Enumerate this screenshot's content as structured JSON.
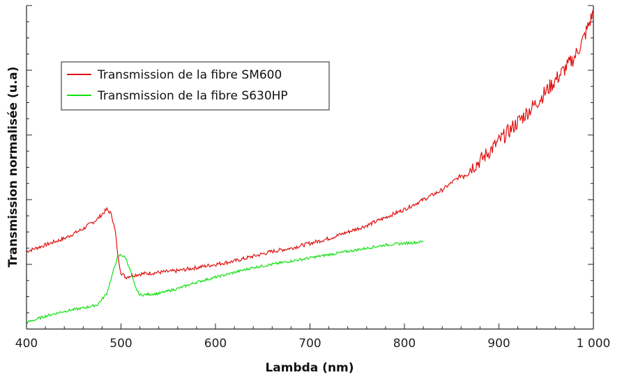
{
  "chart_data": {
    "type": "line",
    "title": "",
    "xlabel": "Lambda (nm)",
    "ylabel": "Transmission normalisée (u.a)",
    "xlim": [
      400,
      1000
    ],
    "ylim": [
      0,
      1
    ],
    "x_ticks": [
      400,
      500,
      600,
      700,
      800,
      900,
      1000
    ],
    "x_tick_labels": [
      "400",
      "500",
      "600",
      "700",
      "800",
      "900",
      "1 000"
    ],
    "y_tick_labels_shown": false,
    "grid": false,
    "legend_position": "top-left",
    "series": [
      {
        "name": "Transmission de la fibre SM600",
        "color": "#e01010",
        "noise": 0.006,
        "points": [
          [
            400,
            0.24
          ],
          [
            420,
            0.26
          ],
          [
            440,
            0.28
          ],
          [
            460,
            0.31
          ],
          [
            475,
            0.34
          ],
          [
            485,
            0.37
          ],
          [
            490,
            0.355
          ],
          [
            494,
            0.3
          ],
          [
            497,
            0.22
          ],
          [
            500,
            0.175
          ],
          [
            505,
            0.16
          ],
          [
            510,
            0.165
          ],
          [
            520,
            0.17
          ],
          [
            540,
            0.175
          ],
          [
            560,
            0.18
          ],
          [
            580,
            0.19
          ],
          [
            600,
            0.2
          ],
          [
            620,
            0.21
          ],
          [
            640,
            0.225
          ],
          [
            660,
            0.24
          ],
          [
            680,
            0.25
          ],
          [
            700,
            0.265
          ],
          [
            720,
            0.28
          ],
          [
            740,
            0.3
          ],
          [
            760,
            0.32
          ],
          [
            780,
            0.345
          ],
          [
            800,
            0.37
          ],
          [
            820,
            0.4
          ],
          [
            840,
            0.43
          ],
          [
            860,
            0.475
          ],
          [
            880,
            0.52
          ],
          [
            900,
            0.58
          ],
          [
            920,
            0.64
          ],
          [
            940,
            0.7
          ],
          [
            960,
            0.77
          ],
          [
            980,
            0.84
          ],
          [
            990,
            0.9
          ],
          [
            995,
            0.94
          ],
          [
            1000,
            0.98
          ]
        ]
      },
      {
        "name": "Transmission de la fibre S630HP",
        "color": "#10e010",
        "noise": 0.004,
        "points": [
          [
            400,
            0.02
          ],
          [
            420,
            0.04
          ],
          [
            440,
            0.055
          ],
          [
            460,
            0.065
          ],
          [
            475,
            0.075
          ],
          [
            485,
            0.11
          ],
          [
            492,
            0.18
          ],
          [
            496,
            0.22
          ],
          [
            500,
            0.23
          ],
          [
            505,
            0.22
          ],
          [
            510,
            0.18
          ],
          [
            515,
            0.13
          ],
          [
            520,
            0.105
          ],
          [
            540,
            0.11
          ],
          [
            560,
            0.125
          ],
          [
            580,
            0.145
          ],
          [
            600,
            0.16
          ],
          [
            620,
            0.175
          ],
          [
            640,
            0.19
          ],
          [
            660,
            0.2
          ],
          [
            680,
            0.21
          ],
          [
            700,
            0.22
          ],
          [
            720,
            0.23
          ],
          [
            740,
            0.24
          ],
          [
            760,
            0.25
          ],
          [
            780,
            0.26
          ],
          [
            800,
            0.265
          ],
          [
            820,
            0.27
          ]
        ]
      }
    ]
  },
  "colors": {
    "axis": "#222222",
    "background": "#ffffff"
  }
}
